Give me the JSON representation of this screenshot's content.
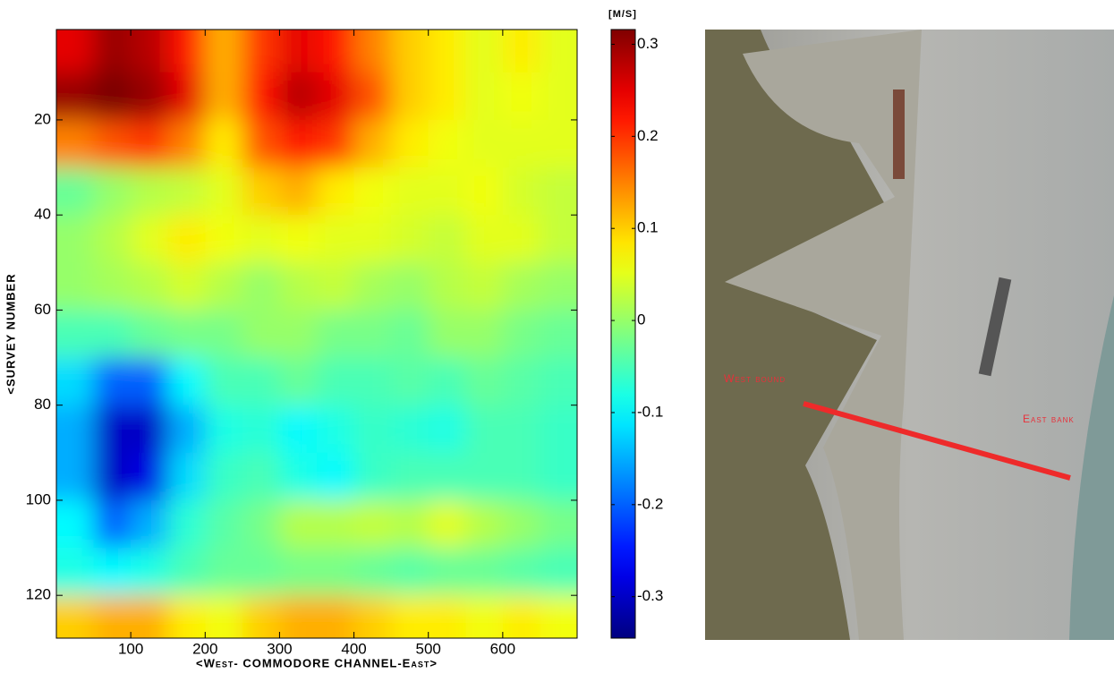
{
  "chart_data": {
    "type": "heatmap",
    "x_label": "<West- COMMODORE CHANNEL-East>",
    "y_label": "<SURVEY NUMBER",
    "colorbar_label": "[M/S]",
    "x": [
      25,
      75,
      125,
      175,
      225,
      275,
      325,
      375,
      425,
      475,
      525,
      575,
      625,
      675
    ],
    "y": [
      5,
      15,
      25,
      35,
      45,
      55,
      65,
      75,
      85,
      95,
      105,
      115,
      125
    ],
    "z": [
      [
        0.25,
        0.3,
        0.28,
        0.22,
        0.12,
        0.2,
        0.25,
        0.22,
        0.15,
        0.1,
        0.08,
        0.05,
        0.08,
        0.05
      ],
      [
        0.3,
        0.32,
        0.3,
        0.25,
        0.12,
        0.22,
        0.28,
        0.25,
        0.18,
        0.1,
        0.08,
        0.05,
        0.06,
        0.05
      ],
      [
        0.15,
        0.18,
        0.2,
        0.15,
        0.08,
        0.18,
        0.22,
        0.2,
        0.12,
        0.08,
        0.06,
        0.05,
        0.05,
        0.05
      ],
      [
        -0.03,
        0.0,
        0.02,
        0.03,
        0.05,
        0.1,
        0.12,
        0.08,
        0.06,
        0.05,
        0.05,
        0.06,
        0.04,
        0.03
      ],
      [
        0.0,
        0.02,
        0.05,
        0.08,
        0.06,
        0.05,
        0.06,
        0.05,
        0.05,
        0.04,
        0.03,
        0.05,
        0.05,
        0.03
      ],
      [
        0.0,
        0.01,
        0.02,
        0.04,
        0.02,
        0.0,
        0.02,
        0.03,
        0.01,
        0.0,
        0.02,
        0.03,
        0.01,
        0.0
      ],
      [
        -0.05,
        -0.05,
        -0.03,
        -0.02,
        -0.02,
        0.0,
        0.0,
        -0.02,
        -0.02,
        -0.03,
        0.0,
        0.0,
        -0.02,
        -0.03
      ],
      [
        -0.12,
        -0.2,
        -0.2,
        -0.1,
        -0.05,
        -0.05,
        -0.03,
        -0.05,
        -0.05,
        -0.04,
        -0.05,
        -0.03,
        -0.04,
        -0.05
      ],
      [
        -0.15,
        -0.3,
        -0.3,
        -0.15,
        -0.08,
        -0.07,
        -0.1,
        -0.08,
        -0.06,
        -0.07,
        -0.08,
        -0.05,
        -0.05,
        -0.06
      ],
      [
        -0.15,
        -0.3,
        -0.28,
        -0.12,
        -0.06,
        -0.05,
        -0.08,
        -0.1,
        -0.06,
        -0.05,
        -0.05,
        -0.05,
        -0.05,
        -0.06
      ],
      [
        -0.1,
        -0.2,
        -0.15,
        -0.07,
        -0.04,
        -0.02,
        0.02,
        0.02,
        0.03,
        0.02,
        0.05,
        0.02,
        0.0,
        -0.02
      ],
      [
        -0.08,
        -0.1,
        -0.08,
        -0.05,
        -0.03,
        -0.03,
        -0.02,
        -0.02,
        -0.03,
        -0.04,
        -0.03,
        -0.03,
        -0.04,
        -0.05
      ],
      [
        0.1,
        0.12,
        0.12,
        0.08,
        0.06,
        0.1,
        0.12,
        0.12,
        0.1,
        0.08,
        0.08,
        0.06,
        0.08,
        0.06
      ]
    ],
    "xlim": [
      0,
      700
    ],
    "xticks": [
      100,
      200,
      300,
      400,
      500,
      600
    ],
    "ylim": [
      1,
      129
    ],
    "yticks": [
      20,
      40,
      60,
      80,
      100,
      120
    ],
    "clim": [
      -0.345,
      0.316
    ],
    "cticks": [
      -0.3,
      -0.2,
      -0.1,
      0,
      0.1,
      0.2,
      0.3
    ],
    "colormap": "jet"
  },
  "image": {
    "annotations": [
      "West bound",
      "East bank"
    ]
  }
}
